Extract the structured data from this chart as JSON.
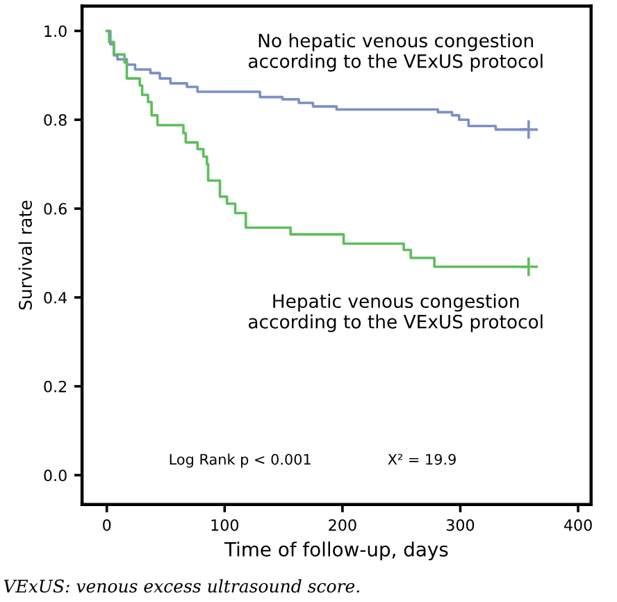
{
  "chart_data": {
    "type": "step",
    "xlabel": "Time of follow-up, days",
    "ylabel": "Survival rate",
    "xlim": [
      -21,
      411
    ],
    "ylim": [
      -0.066,
      1.056
    ],
    "xticks": [
      0,
      100,
      200,
      300,
      400
    ],
    "yticks": [
      {
        "value": 0,
        "label": "0.0"
      },
      {
        "value": 0.2,
        "label": "0.2"
      },
      {
        "value": 0.4,
        "label": "0.4"
      },
      {
        "value": 0.6,
        "label": "0.6"
      },
      {
        "value": 0.8,
        "label": "0.8"
      },
      {
        "value": 1.0,
        "label": "1.0"
      }
    ],
    "grid": false,
    "legend": false,
    "line_style": "solid",
    "series": [
      {
        "name": "No hepatic venous congestion\naccording to the VExUS protocol",
        "color": "#7b8fc8",
        "x": [
          0,
          3,
          6,
          9,
          17,
          24,
          37,
          45,
          54,
          68,
          77,
          130,
          149,
          163,
          175,
          195,
          281,
          293,
          299,
          307,
          330,
          358
        ],
        "values": [
          1.0,
          0.97,
          0.945,
          0.936,
          0.924,
          0.913,
          0.905,
          0.893,
          0.882,
          0.874,
          0.863,
          0.851,
          0.846,
          0.838,
          0.83,
          0.823,
          0.817,
          0.81,
          0.8,
          0.786,
          0.778,
          0.778
        ],
        "marker": "none"
      },
      {
        "name": "Hepatic venous congestion\naccording to the VExUS protocol",
        "color": "#5cbf5c",
        "x": [
          0,
          2,
          6,
          15,
          17,
          28,
          30,
          35,
          38,
          43,
          65,
          67,
          77,
          82,
          85,
          86,
          96,
          102,
          109,
          118,
          156,
          201,
          252,
          258,
          278,
          358
        ],
        "values": [
          1.0,
          0.975,
          0.947,
          0.929,
          0.893,
          0.877,
          0.856,
          0.84,
          0.81,
          0.788,
          0.77,
          0.749,
          0.734,
          0.717,
          0.7,
          0.663,
          0.627,
          0.611,
          0.59,
          0.557,
          0.542,
          0.521,
          0.507,
          0.489,
          0.469,
          0.469
        ],
        "marker": "none"
      },
      {
        "type": "scatter",
        "color": "#7b8fc8",
        "x": [
          358
        ],
        "values": [
          0.778
        ],
        "marker": "cross"
      },
      {
        "type": "scatter",
        "color": "#5cbf5c",
        "x": [
          358
        ],
        "values": [
          0.469
        ],
        "marker": "cross"
      }
    ],
    "annotations": [
      "Log Rank p < 0.001",
      "X² = 19.9",
      "VExUS: venous excess ultrasound score."
    ]
  }
}
